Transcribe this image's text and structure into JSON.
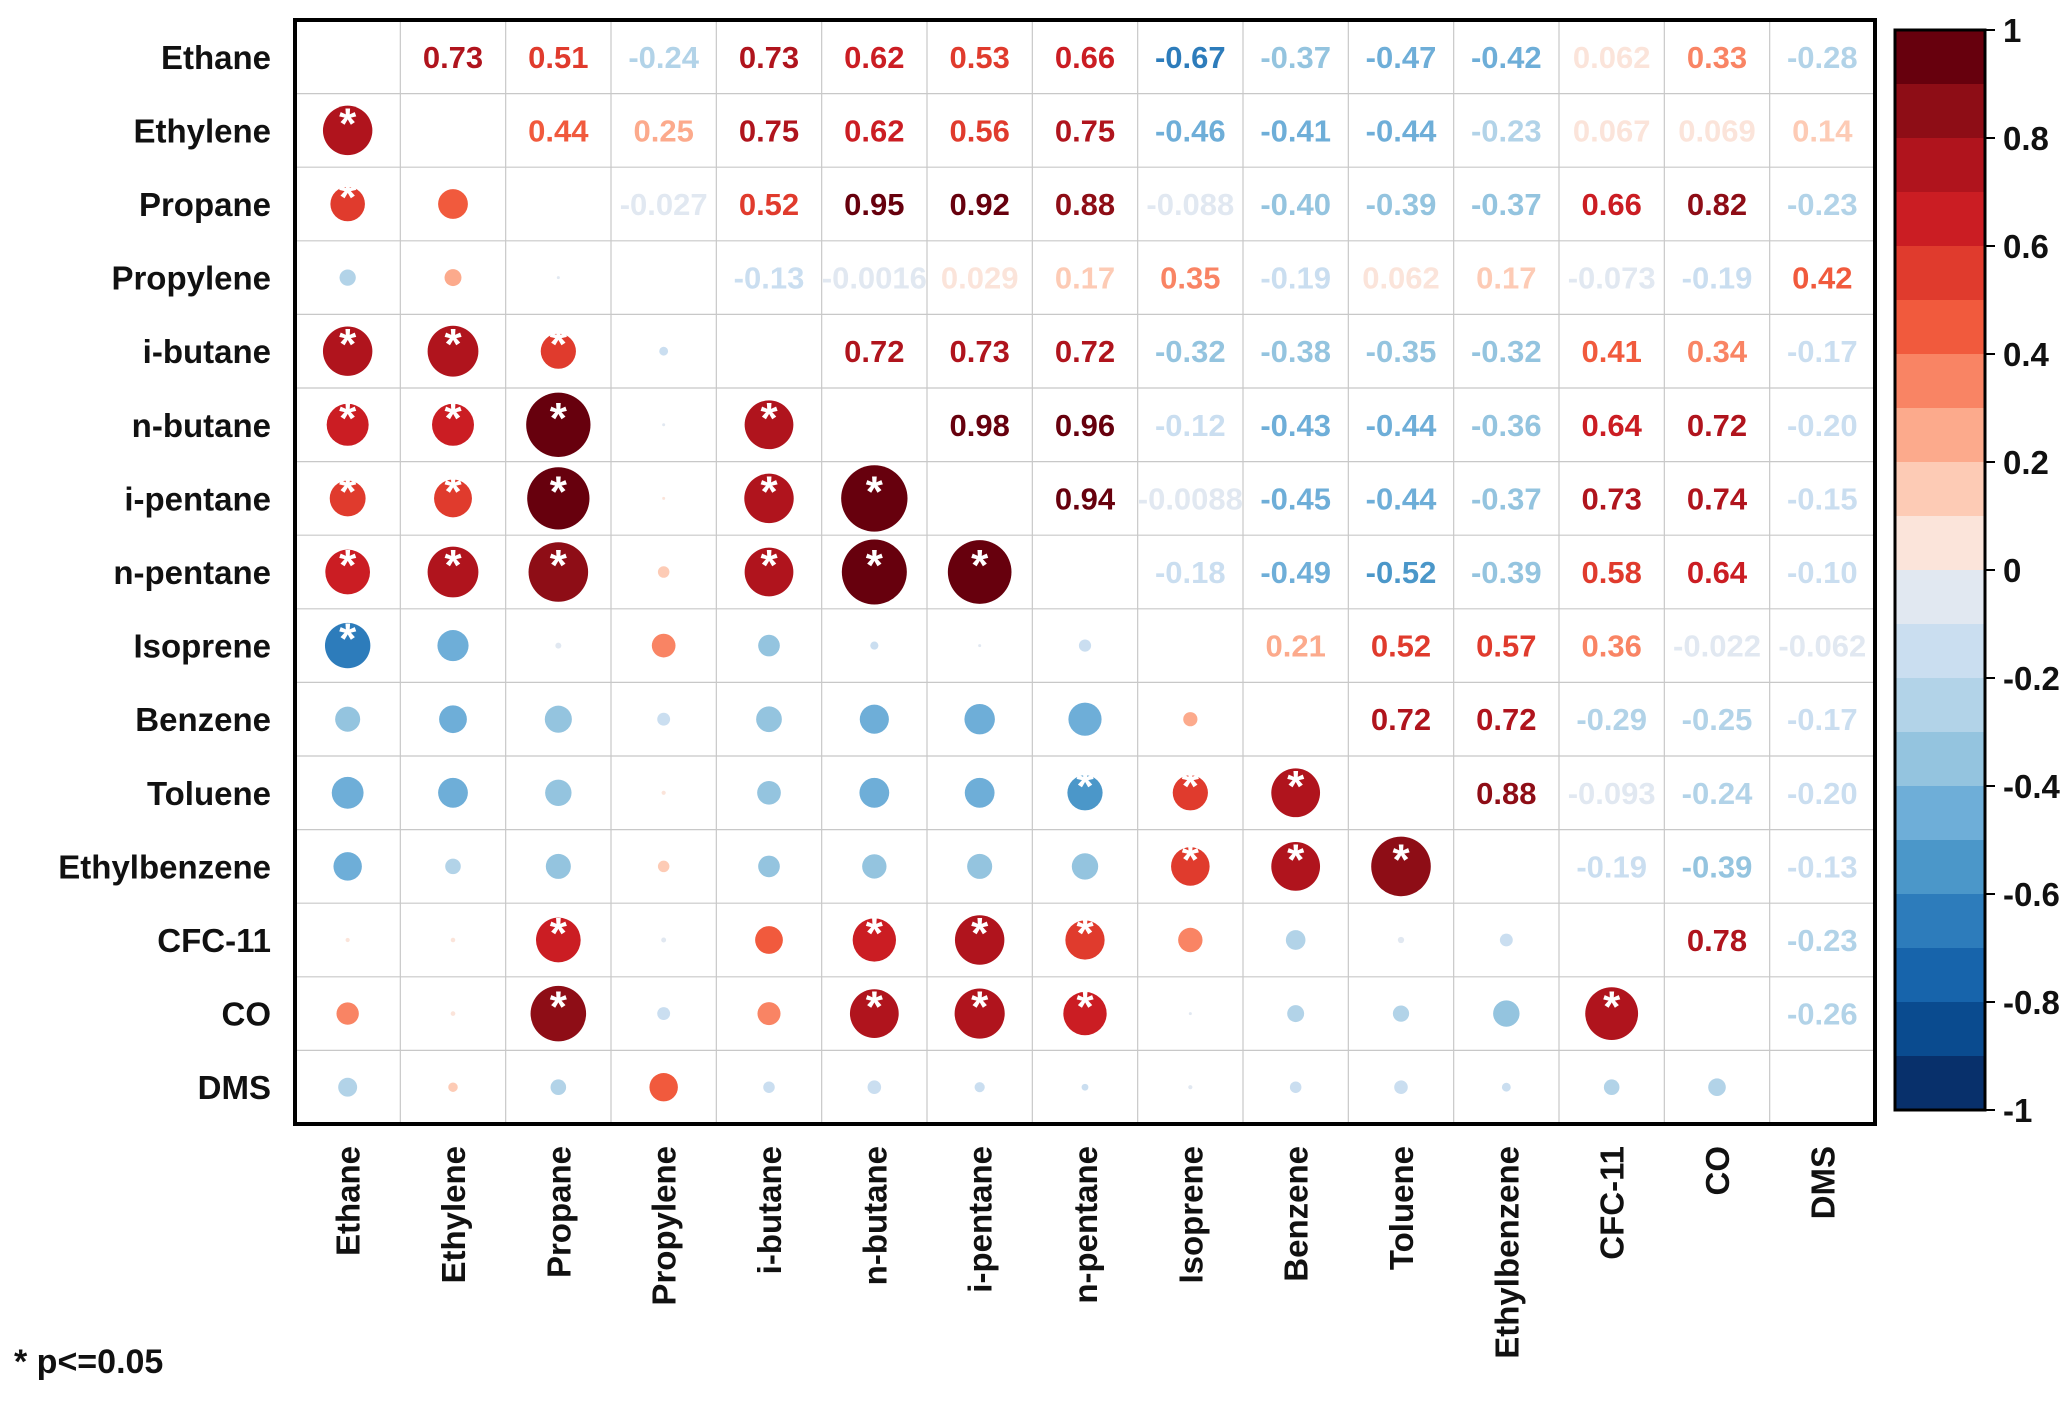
{
  "chart_data": {
    "type": "heatmap",
    "variables": [
      "Ethane",
      "Ethylene",
      "Propane",
      "Propylene",
      "i-butane",
      "n-butane",
      "i-pentane",
      "n-pentane",
      "Isoprene",
      "Benzene",
      "Toluene",
      "Ethylbenzene",
      "CFC-11",
      "CO",
      "DMS"
    ],
    "upper_labels": [
      [
        "",
        "0.73",
        "0.51",
        "-0.24",
        "0.73",
        "0.62",
        "0.53",
        "0.66",
        "-0.67",
        "-0.37",
        "-0.47",
        "-0.42",
        "0.062",
        "0.33",
        "-0.28"
      ],
      [
        "",
        "",
        "0.44",
        "0.25",
        "0.75",
        "0.62",
        "0.56",
        "0.75",
        "-0.46",
        "-0.41",
        "-0.44",
        "-0.23",
        "0.067",
        "0.069",
        "0.14"
      ],
      [
        "",
        "",
        "",
        "-0.027",
        "0.52",
        "0.95",
        "0.92",
        "0.88",
        "-0.088",
        "-0.40",
        "-0.39",
        "-0.37",
        "0.66",
        "0.82",
        "-0.23"
      ],
      [
        "",
        "",
        "",
        "",
        "-0.13",
        "-0.0016",
        "0.029",
        "0.17",
        "0.35",
        "-0.19",
        "0.062",
        "0.17",
        "-0.073",
        "-0.19",
        "0.42"
      ],
      [
        "",
        "",
        "",
        "",
        "",
        "0.72",
        "0.73",
        "0.72",
        "-0.32",
        "-0.38",
        "-0.35",
        "-0.32",
        "0.41",
        "0.34",
        "-0.17"
      ],
      [
        "",
        "",
        "",
        "",
        "",
        "",
        "0.98",
        "0.96",
        "-0.12",
        "-0.43",
        "-0.44",
        "-0.36",
        "0.64",
        "0.72",
        "-0.20"
      ],
      [
        "",
        "",
        "",
        "",
        "",
        "",
        "",
        "0.94",
        "-0.0088",
        "-0.45",
        "-0.44",
        "-0.37",
        "0.73",
        "0.74",
        "-0.15"
      ],
      [
        "",
        "",
        "",
        "",
        "",
        "",
        "",
        "",
        "-0.18",
        "-0.49",
        "-0.52",
        "-0.39",
        "0.58",
        "0.64",
        "-0.10"
      ],
      [
        "",
        "",
        "",
        "",
        "",
        "",
        "",
        "",
        "",
        "0.21",
        "0.52",
        "0.57",
        "0.36",
        "-0.022",
        "-0.062"
      ],
      [
        "",
        "",
        "",
        "",
        "",
        "",
        "",
        "",
        "",
        "",
        "0.72",
        "0.72",
        "-0.29",
        "-0.25",
        "-0.17"
      ],
      [
        "",
        "",
        "",
        "",
        "",
        "",
        "",
        "",
        "",
        "",
        "",
        "0.88",
        "-0.093",
        "-0.24",
        "-0.20"
      ],
      [
        "",
        "",
        "",
        "",
        "",
        "",
        "",
        "",
        "",
        "",
        "",
        "",
        "-0.19",
        "-0.39",
        "-0.13"
      ],
      [
        "",
        "",
        "",
        "",
        "",
        "",
        "",
        "",
        "",
        "",
        "",
        "",
        "",
        "0.78",
        "-0.23"
      ],
      [
        "",
        "",
        "",
        "",
        "",
        "",
        "",
        "",
        "",
        "",
        "",
        "",
        "",
        "",
        "-0.26"
      ],
      [
        "",
        "",
        "",
        "",
        "",
        "",
        "",
        "",
        "",
        "",
        "",
        "",
        "",
        "",
        ""
      ]
    ],
    "significance_marker": "*",
    "significant_pairs": [
      [
        1,
        0
      ],
      [
        2,
        0
      ],
      [
        4,
        0
      ],
      [
        4,
        1
      ],
      [
        4,
        2
      ],
      [
        5,
        0
      ],
      [
        5,
        1
      ],
      [
        5,
        2
      ],
      [
        5,
        4
      ],
      [
        6,
        0
      ],
      [
        6,
        1
      ],
      [
        6,
        2
      ],
      [
        6,
        4
      ],
      [
        6,
        5
      ],
      [
        7,
        0
      ],
      [
        7,
        1
      ],
      [
        7,
        2
      ],
      [
        7,
        4
      ],
      [
        7,
        5
      ],
      [
        7,
        6
      ],
      [
        8,
        0
      ],
      [
        10,
        7
      ],
      [
        10,
        8
      ],
      [
        10,
        9
      ],
      [
        11,
        8
      ],
      [
        11,
        9
      ],
      [
        11,
        10
      ],
      [
        12,
        2
      ],
      [
        12,
        5
      ],
      [
        12,
        6
      ],
      [
        12,
        7
      ],
      [
        13,
        2
      ],
      [
        13,
        5
      ],
      [
        13,
        6
      ],
      [
        13,
        7
      ],
      [
        13,
        12
      ]
    ],
    "colorbar": {
      "ticks": [
        "1",
        "0.8",
        "0.6",
        "0.4",
        "0.2",
        "0",
        "-0.2",
        "-0.4",
        "-0.6",
        "-0.8",
        "-1"
      ],
      "range": [
        -1,
        1
      ],
      "colors_high_to_low": [
        "#67000d",
        "#8e0d16",
        "#b0141d",
        "#cb1d23",
        "#e03b2d",
        "#f15a3d",
        "#f98464",
        "#fcaa8c",
        "#fdcbb5",
        "#fbe4da",
        "#e1e8f1",
        "#cadef0",
        "#b2d3e8",
        "#94c4df",
        "#6eaed8",
        "#4b97c9",
        "#2d7cbb",
        "#1764ab",
        "#0a4b8f",
        "#08306b"
      ]
    },
    "footnote": "* p<=0.05",
    "grid": true,
    "legend_position": "right"
  }
}
